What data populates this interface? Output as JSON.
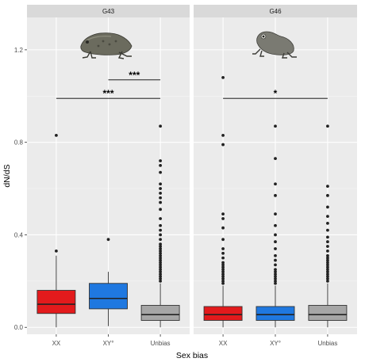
{
  "chart_data": {
    "type": "boxplot",
    "ylabel": "dN/dS",
    "xlabel": "Sex bias",
    "ylim": [
      -0.03,
      1.34
    ],
    "y_ticks": [
      0.0,
      0.4,
      0.8,
      1.2
    ],
    "y_tick_labels": [
      "0.0",
      "0.4",
      "0.8",
      "1.2"
    ],
    "categories": [
      "XX",
      "XY°",
      "Unbias"
    ],
    "colors": {
      "XX": "#e31a1c",
      "XY°": "#1f78e0",
      "Unbias": "#a6a6a6"
    },
    "panels": [
      {
        "title": "G43",
        "icon": "toad-icon",
        "boxes": [
          {
            "category": "XX",
            "q1": 0.06,
            "median": 0.1,
            "q3": 0.16,
            "whisker_low": 0.0,
            "whisker_high": 0.31,
            "outliers": [
              0.33,
              0.83
            ]
          },
          {
            "category": "XY°",
            "q1": 0.08,
            "median": 0.125,
            "q3": 0.19,
            "whisker_low": 0.005,
            "whisker_high": 0.24,
            "outliers": [
              0.38
            ]
          },
          {
            "category": "Unbias",
            "q1": 0.03,
            "median": 0.055,
            "q3": 0.095,
            "whisker_low": 0.0,
            "whisker_high": 0.19,
            "outliers": [
              0.2,
              0.21,
              0.22,
              0.23,
              0.24,
              0.25,
              0.26,
              0.27,
              0.28,
              0.29,
              0.3,
              0.31,
              0.32,
              0.33,
              0.34,
              0.35,
              0.36,
              0.38,
              0.4,
              0.42,
              0.44,
              0.47,
              0.51,
              0.54,
              0.56,
              0.58,
              0.6,
              0.62,
              0.67,
              0.7,
              0.72,
              0.87
            ]
          }
        ],
        "significance": [
          {
            "from": "XY°",
            "to": "Unbias",
            "y": 1.07,
            "label": "***"
          },
          {
            "from": "XX",
            "to": "Unbias",
            "y": 0.99,
            "label": "***"
          }
        ]
      },
      {
        "title": "G46",
        "icon": "frog-icon",
        "boxes": [
          {
            "category": "XX",
            "q1": 0.03,
            "median": 0.055,
            "q3": 0.09,
            "whisker_low": 0.0,
            "whisker_high": 0.18,
            "outliers": [
              0.19,
              0.2,
              0.21,
              0.22,
              0.23,
              0.24,
              0.25,
              0.26,
              0.27,
              0.28,
              0.3,
              0.32,
              0.34,
              0.38,
              0.43,
              0.47,
              0.49,
              0.79,
              0.83,
              1.08
            ]
          },
          {
            "category": "XY°",
            "q1": 0.03,
            "median": 0.055,
            "q3": 0.09,
            "whisker_low": 0.0,
            "whisker_high": 0.18,
            "outliers": [
              0.19,
              0.2,
              0.21,
              0.22,
              0.23,
              0.24,
              0.25,
              0.27,
              0.29,
              0.31,
              0.34,
              0.37,
              0.4,
              0.44,
              0.49,
              0.57,
              0.62,
              0.73,
              0.87
            ]
          },
          {
            "category": "Unbias",
            "q1": 0.03,
            "median": 0.055,
            "q3": 0.095,
            "whisker_low": 0.0,
            "whisker_high": 0.19,
            "outliers": [
              0.2,
              0.21,
              0.22,
              0.23,
              0.24,
              0.25,
              0.26,
              0.27,
              0.28,
              0.29,
              0.3,
              0.31,
              0.33,
              0.35,
              0.37,
              0.39,
              0.42,
              0.45,
              0.48,
              0.52,
              0.57,
              0.61,
              0.87
            ]
          }
        ],
        "significance": [
          {
            "from": "XX",
            "to": "Unbias",
            "y": 0.99,
            "label": "*"
          }
        ]
      }
    ]
  }
}
